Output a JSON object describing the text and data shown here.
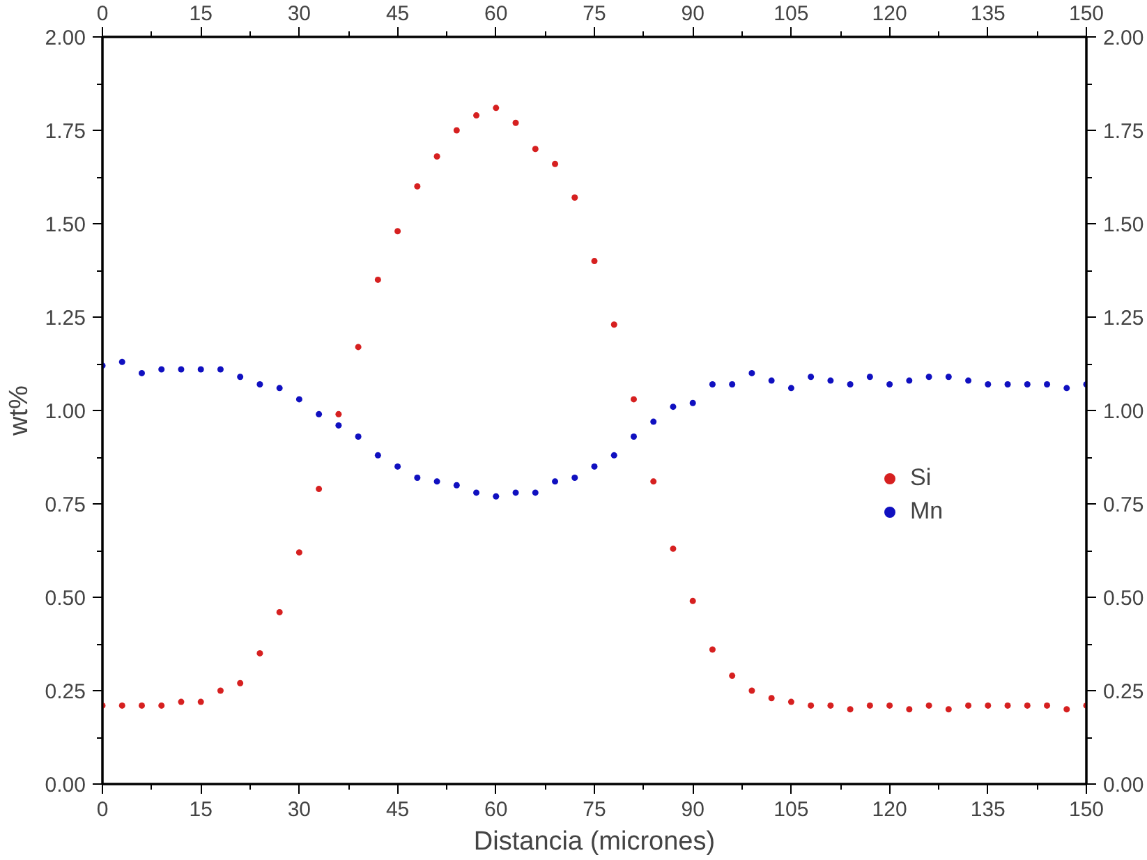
{
  "chart_data": {
    "type": "scatter",
    "xlabel": "Distancia (micrones)",
    "ylabel": "wt%",
    "x": [
      0,
      3,
      6,
      9,
      12,
      15,
      18,
      21,
      24,
      27,
      30,
      33,
      36,
      39,
      42,
      45,
      48,
      51,
      54,
      57,
      60,
      63,
      66,
      69,
      72,
      75,
      78,
      81,
      84,
      87,
      90,
      93,
      96,
      99,
      102,
      105,
      108,
      111,
      114,
      117,
      120,
      123,
      126,
      129,
      132,
      135,
      138,
      141,
      144,
      147,
      150
    ],
    "series": [
      {
        "name": "Si",
        "color": "#d62020",
        "values": [
          0.21,
          0.21,
          0.21,
          0.21,
          0.22,
          0.22,
          0.25,
          0.27,
          0.35,
          0.46,
          0.62,
          0.79,
          0.99,
          1.17,
          1.35,
          1.48,
          1.6,
          1.68,
          1.75,
          1.79,
          1.81,
          1.77,
          1.7,
          1.66,
          1.57,
          1.4,
          1.23,
          1.03,
          0.81,
          0.63,
          0.49,
          0.36,
          0.29,
          0.25,
          0.23,
          0.22,
          0.21,
          0.21,
          0.2,
          0.21,
          0.21,
          0.2,
          0.21,
          0.2,
          0.21,
          0.21,
          0.21,
          0.21,
          0.21,
          0.2,
          0.21
        ]
      },
      {
        "name": "Mn",
        "color": "#1010c0",
        "values": [
          1.12,
          1.13,
          1.1,
          1.11,
          1.11,
          1.11,
          1.11,
          1.09,
          1.07,
          1.06,
          1.03,
          0.99,
          0.96,
          0.93,
          0.88,
          0.85,
          0.82,
          0.81,
          0.8,
          0.78,
          0.77,
          0.78,
          0.78,
          0.81,
          0.82,
          0.85,
          0.88,
          0.93,
          0.97,
          1.01,
          1.02,
          1.07,
          1.07,
          1.1,
          1.08,
          1.06,
          1.09,
          1.08,
          1.07,
          1.09,
          1.07,
          1.08,
          1.09,
          1.09,
          1.08,
          1.07,
          1.07,
          1.07,
          1.07,
          1.06,
          1.07
        ]
      }
    ],
    "xlim": [
      0,
      150
    ],
    "xticks": [
      0,
      15,
      30,
      45,
      60,
      75,
      90,
      105,
      120,
      135,
      150
    ],
    "x2lim": [
      0,
      150
    ],
    "x2ticks": [
      0,
      15,
      30,
      45,
      60,
      75,
      90,
      105,
      120,
      135,
      150
    ],
    "ylim": [
      0,
      2
    ],
    "yticks": [
      {
        "value": 0,
        "label": "0.00"
      },
      {
        "value": 0.25,
        "label": "0.25"
      },
      {
        "value": 0.5,
        "label": "0.50"
      },
      {
        "value": 0.75,
        "label": "0.75"
      },
      {
        "value": 1,
        "label": "1.00"
      },
      {
        "value": 1.25,
        "label": "1.25"
      },
      {
        "value": 1.5,
        "label": "1.50"
      },
      {
        "value": 1.75,
        "label": "1.75"
      },
      {
        "value": 2,
        "label": "2.00"
      }
    ],
    "y2lim": [
      0,
      2
    ],
    "y2ticks": [
      {
        "value": 0,
        "label": "0.00"
      },
      {
        "value": 0.25,
        "label": "0.25"
      },
      {
        "value": 0.5,
        "label": "0.50"
      },
      {
        "value": 0.75,
        "label": "0.75"
      },
      {
        "value": 1,
        "label": "1.00"
      },
      {
        "value": 1.25,
        "label": "1.25"
      },
      {
        "value": 1.5,
        "label": "1.50"
      },
      {
        "value": 1.75,
        "label": "1.75"
      },
      {
        "value": 2,
        "label": "2.00"
      }
    ],
    "marker": "circle",
    "legend": "right",
    "grid": false
  }
}
